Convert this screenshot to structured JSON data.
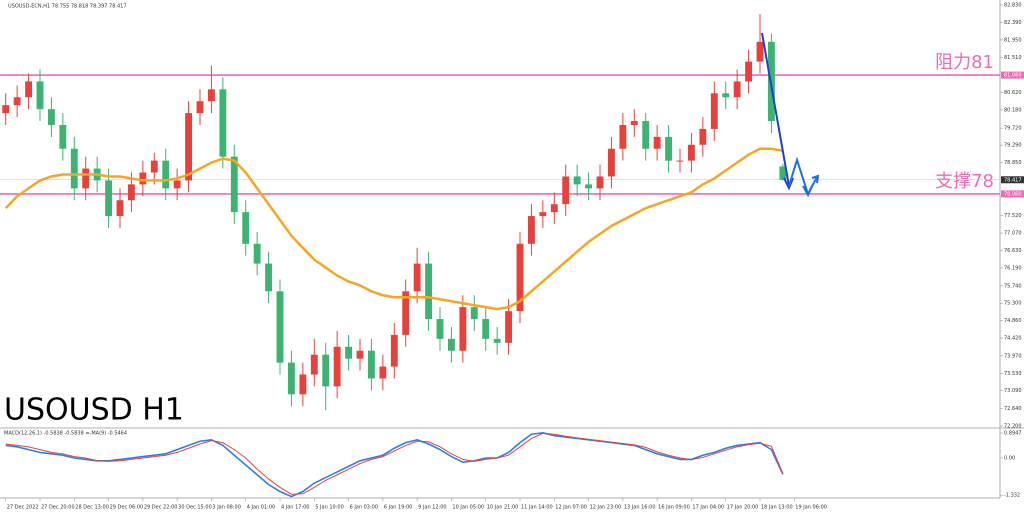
{
  "chart_data": {
    "type": "candlestick",
    "header": "USOUSD-ECN,H1 78.755 78.818 78.397 78.417",
    "watermark": "USOUSD H1",
    "up_color": "#e8413c",
    "down_color": "#3cb371",
    "open": [
      80.1,
      80.3,
      80.5,
      80.9,
      80.2,
      79.8,
      79.2,
      78.2,
      78.7,
      78.4,
      77.5,
      77.9,
      78.3,
      78.6,
      78.9,
      78.2,
      78.4,
      80.1,
      80.4,
      80.7,
      79.0,
      77.6,
      76.8,
      76.3,
      75.6,
      73.8,
      73.0,
      73.5,
      74.0,
      73.2,
      74.2,
      73.9,
      74.1,
      73.4,
      73.7,
      74.5,
      75.6,
      76.3,
      74.9,
      74.4,
      74.1,
      75.2,
      74.9,
      74.4,
      74.3,
      75.1,
      76.8,
      77.5,
      77.6,
      77.8,
      78.5,
      78.3,
      78.2,
      78.5,
      79.2,
      79.8,
      79.9,
      79.2,
      79.5,
      78.9,
      78.9,
      79.3,
      79.7,
      80.6,
      80.5,
      80.9,
      81.4,
      81.9,
      78.755
    ],
    "high": [
      80.6,
      80.8,
      81.1,
      81.2,
      80.5,
      80.1,
      79.5,
      79.0,
      79.0,
      78.7,
      78.2,
      78.6,
      78.9,
      79.1,
      79.2,
      78.7,
      80.4,
      80.7,
      81.3,
      81.0,
      79.3,
      77.9,
      77.1,
      76.6,
      75.9,
      74.1,
      73.8,
      74.4,
      74.3,
      74.6,
      74.5,
      74.4,
      74.4,
      74.0,
      74.8,
      75.9,
      76.7,
      76.6,
      75.2,
      74.7,
      75.5,
      75.5,
      75.2,
      74.7,
      75.4,
      77.1,
      77.8,
      77.9,
      78.1,
      78.8,
      78.8,
      78.6,
      78.8,
      79.5,
      80.1,
      80.2,
      80.1,
      79.8,
      79.8,
      79.2,
      79.6,
      80.0,
      80.9,
      80.9,
      81.2,
      81.7,
      82.6,
      82.1,
      78.818
    ],
    "low": [
      79.8,
      80.0,
      80.2,
      79.9,
      79.5,
      78.9,
      77.9,
      77.9,
      78.1,
      77.2,
      77.2,
      77.6,
      78.0,
      78.3,
      77.9,
      77.9,
      78.1,
      79.8,
      80.1,
      78.7,
      77.3,
      76.5,
      76.0,
      75.3,
      73.5,
      72.7,
      72.7,
      73.2,
      72.6,
      72.9,
      73.6,
      73.6,
      73.1,
      73.1,
      73.4,
      74.2,
      75.3,
      74.6,
      74.1,
      73.8,
      73.8,
      74.6,
      74.1,
      74.0,
      74.0,
      74.8,
      76.5,
      77.2,
      77.3,
      77.5,
      78.0,
      77.9,
      77.9,
      78.2,
      78.9,
      79.5,
      78.9,
      78.9,
      78.6,
      78.6,
      78.6,
      79.0,
      79.4,
      80.2,
      80.2,
      80.6,
      81.1,
      79.6,
      78.397
    ],
    "close": [
      80.3,
      80.5,
      80.9,
      80.2,
      79.8,
      79.2,
      78.2,
      78.7,
      78.4,
      77.5,
      77.9,
      78.3,
      78.6,
      78.9,
      78.2,
      78.4,
      80.1,
      80.4,
      80.7,
      79.0,
      77.6,
      76.8,
      76.3,
      75.6,
      73.8,
      73.0,
      73.5,
      74.0,
      73.2,
      74.2,
      73.9,
      74.1,
      73.4,
      73.7,
      74.5,
      75.6,
      76.3,
      74.9,
      74.4,
      74.1,
      75.2,
      74.9,
      74.4,
      74.3,
      75.1,
      76.8,
      77.5,
      77.6,
      77.8,
      78.5,
      78.3,
      78.2,
      78.5,
      79.2,
      79.8,
      79.9,
      79.2,
      79.5,
      78.9,
      78.9,
      79.3,
      79.7,
      80.6,
      80.5,
      80.9,
      81.4,
      81.9,
      79.9,
      78.417
    ],
    "moving_average": {
      "color": "#f5a623",
      "values": [
        77.7,
        78.0,
        78.2,
        78.4,
        78.5,
        78.55,
        78.55,
        78.55,
        78.55,
        78.5,
        78.5,
        78.45,
        78.4,
        78.4,
        78.4,
        78.45,
        78.55,
        78.7,
        78.85,
        78.95,
        78.9,
        78.6,
        78.2,
        77.8,
        77.4,
        77.0,
        76.7,
        76.4,
        76.2,
        76.0,
        75.85,
        75.75,
        75.6,
        75.5,
        75.45,
        75.45,
        75.45,
        75.45,
        75.4,
        75.35,
        75.3,
        75.25,
        75.2,
        75.15,
        75.2,
        75.35,
        75.6,
        75.85,
        76.1,
        76.35,
        76.6,
        76.85,
        77.05,
        77.25,
        77.4,
        77.55,
        77.7,
        77.8,
        77.9,
        78.0,
        78.1,
        78.3,
        78.45,
        78.65,
        78.85,
        79.05,
        79.2,
        79.2,
        79.15
      ]
    },
    "ylim": [
      72.149,
      82.956
    ],
    "yticks": [
      {
        "value": 82.83,
        "label": "82.830"
      },
      {
        "value": 82.39,
        "label": "82.390"
      },
      {
        "value": 81.95,
        "label": "81.950"
      },
      {
        "value": 81.51,
        "label": "81.510"
      },
      {
        "value": 80.62,
        "label": "80.620"
      },
      {
        "value": 80.18,
        "label": "80.180"
      },
      {
        "value": 79.72,
        "label": "79.720"
      },
      {
        "value": 79.29,
        "label": "79.290"
      },
      {
        "value": 78.85,
        "label": "78.850"
      },
      {
        "value": 77.52,
        "label": "77.520"
      },
      {
        "value": 77.07,
        "label": "77.070"
      },
      {
        "value": 76.63,
        "label": "76.630"
      },
      {
        "value": 76.19,
        "label": "76.190"
      },
      {
        "value": 75.74,
        "label": "75.740"
      },
      {
        "value": 75.3,
        "label": "75.300"
      },
      {
        "value": 74.86,
        "label": "74.860"
      },
      {
        "value": 74.42,
        "label": "74.420"
      },
      {
        "value": 73.97,
        "label": "73.970"
      },
      {
        "value": 73.53,
        "label": "73.530"
      },
      {
        "value": 73.09,
        "label": "73.090"
      },
      {
        "value": 72.64,
        "label": "72.640"
      },
      {
        "value": 72.2,
        "label": "72.200"
      }
    ],
    "current_price": 78.417,
    "levels": [
      {
        "label": "阻力81",
        "value": 81.06,
        "axis_label": "81.060"
      },
      {
        "label": "支撑78",
        "value": 78.06,
        "axis_label": "78.060"
      }
    ],
    "level_color": "#f06ab8",
    "xlim": [
      -0.5,
      87.0
    ],
    "xticks": [
      {
        "value": 0,
        "label": "27 Dec 2022"
      },
      {
        "value": 3,
        "label": "27 Dec 20:00"
      },
      {
        "value": 6,
        "label": "28 Dec 13:00"
      },
      {
        "value": 9,
        "label": "29 Dec 06:00"
      },
      {
        "value": 12,
        "label": "29 Dec 22:00"
      },
      {
        "value": 15,
        "label": "30 Dec 15:00"
      },
      {
        "value": 18,
        "label": "3 Jan 08:00"
      },
      {
        "value": 21,
        "label": "4 Jan 01:00"
      },
      {
        "value": 24,
        "label": "4 Jan 17:00"
      },
      {
        "value": 27,
        "label": "5 Jan 10:00"
      },
      {
        "value": 30,
        "label": "6 Jan 03:00"
      },
      {
        "value": 33,
        "label": "6 Jan 19:00"
      },
      {
        "value": 36,
        "label": "9 Jan 12:00"
      },
      {
        "value": 39,
        "label": "10 Jan 05:00"
      },
      {
        "value": 42,
        "label": "10 Jan 21:00"
      },
      {
        "value": 45,
        "label": "11 Jan 14:00"
      },
      {
        "value": 48,
        "label": "12 Jan 07:00"
      },
      {
        "value": 51,
        "label": "12 Jan 23:00"
      },
      {
        "value": 54,
        "label": "13 Jan 16:00"
      },
      {
        "value": 57,
        "label": "16 Jan 09:00"
      },
      {
        "value": 60,
        "label": "17 Jan 04:00"
      },
      {
        "value": 63,
        "label": "17 Jan 20:00"
      },
      {
        "value": 66,
        "label": "18 Jan 13:00"
      },
      {
        "value": 69,
        "label": "19 Jan 06:00"
      }
    ],
    "macd": {
      "label": "MACD(12,26,1) -0.5838 -0.5838 =-MA(9) -0.5464",
      "ylim": [
        -1.432,
        1.074
      ],
      "yticks": [
        0.8947,
        {
          "value": 0,
          "label": "0.00"
        },
        -1.332
      ],
      "series": [
        {
          "color": "#2f7fe0",
          "values": [
            0.45,
            0.4,
            0.3,
            0.2,
            0.15,
            0.1,
            0.0,
            -0.05,
            -0.1,
            -0.1,
            -0.05,
            0.0,
            0.05,
            0.1,
            0.15,
            0.3,
            0.45,
            0.6,
            0.65,
            0.45,
            0.1,
            -0.25,
            -0.6,
            -0.95,
            -1.2,
            -1.38,
            -1.2,
            -0.9,
            -0.7,
            -0.5,
            -0.3,
            -0.1,
            0.0,
            0.1,
            0.35,
            0.55,
            0.65,
            0.5,
            0.3,
            0.05,
            -0.15,
            -0.1,
            0.0,
            0.0,
            0.2,
            0.55,
            0.85,
            0.9,
            0.8,
            0.75,
            0.7,
            0.65,
            0.6,
            0.55,
            0.5,
            0.45,
            0.3,
            0.15,
            0.05,
            -0.05,
            -0.05,
            0.1,
            0.2,
            0.35,
            0.45,
            0.5,
            0.55,
            0.3,
            -0.5838
          ]
        },
        {
          "color": "#e8413c",
          "values": [
            0.5,
            0.45,
            0.4,
            0.3,
            0.2,
            0.15,
            0.05,
            0.0,
            -0.1,
            -0.12,
            -0.1,
            -0.05,
            0.0,
            0.05,
            0.1,
            0.2,
            0.35,
            0.5,
            0.62,
            0.55,
            0.3,
            0.0,
            -0.4,
            -0.75,
            -1.05,
            -1.3,
            -1.28,
            -1.05,
            -0.8,
            -0.6,
            -0.4,
            -0.2,
            -0.05,
            0.05,
            0.25,
            0.45,
            0.6,
            0.58,
            0.4,
            0.15,
            -0.05,
            -0.12,
            -0.05,
            0.0,
            0.1,
            0.4,
            0.7,
            0.88,
            0.85,
            0.78,
            0.72,
            0.67,
            0.62,
            0.57,
            0.52,
            0.47,
            0.38,
            0.22,
            0.1,
            0.0,
            -0.06,
            0.02,
            0.15,
            0.28,
            0.4,
            0.48,
            0.53,
            0.42,
            -0.5464
          ]
        }
      ]
    }
  }
}
